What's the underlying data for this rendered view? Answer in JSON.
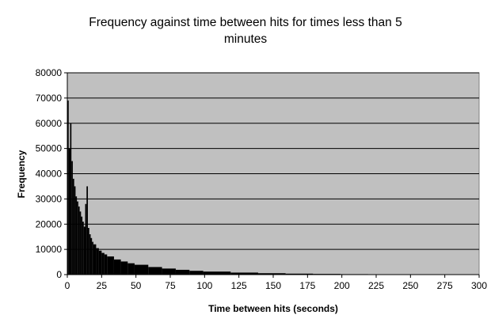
{
  "chart_data": {
    "type": "bar",
    "title_lines": [
      "Frequency against time between hits for times less than 5",
      "minutes"
    ],
    "xlabel": "Time between hits (seconds)",
    "ylabel": "Frequency",
    "xlim": [
      0,
      300
    ],
    "ylim": [
      0,
      80000
    ],
    "x_ticks": [
      0,
      25,
      50,
      75,
      100,
      125,
      150,
      175,
      200,
      225,
      250,
      275,
      300
    ],
    "y_ticks": [
      0,
      10000,
      20000,
      30000,
      40000,
      50000,
      60000,
      70000,
      80000
    ],
    "grid": "horizontal",
    "legend": "none",
    "bar_color": "#000000",
    "plot_background": "#c0c0c0",
    "x": [
      1,
      2,
      3,
      4,
      5,
      6,
      7,
      8,
      9,
      10,
      11,
      12,
      13,
      14,
      15,
      16,
      17,
      18,
      19,
      20,
      22,
      24,
      26,
      28,
      30,
      35,
      40,
      45,
      50,
      60,
      70,
      80,
      90,
      100,
      120,
      140,
      160,
      180,
      200,
      220,
      240,
      260,
      280,
      300
    ],
    "values": [
      69000,
      50000,
      60000,
      45000,
      38000,
      35000,
      31000,
      29000,
      27000,
      25000,
      23000,
      21000,
      19000,
      28000,
      35000,
      18500,
      16000,
      14500,
      13000,
      12000,
      10500,
      9500,
      8600,
      8000,
      7200,
      6000,
      5200,
      4500,
      3900,
      3000,
      2400,
      1900,
      1500,
      1200,
      800,
      550,
      380,
      270,
      180,
      120,
      80,
      50,
      35,
      20
    ]
  }
}
